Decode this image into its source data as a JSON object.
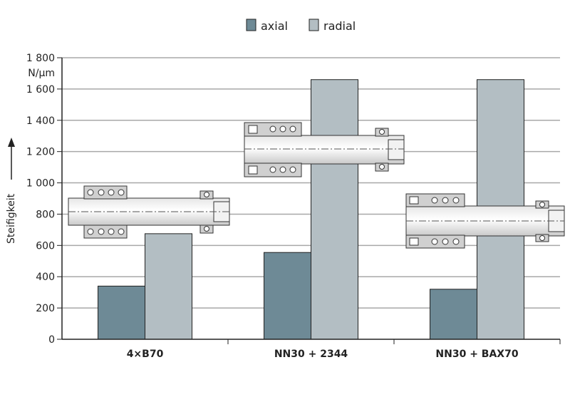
{
  "chart_data": {
    "type": "bar",
    "categories": [
      "4×B70",
      "NN30 + 2344",
      "NN30 + BAX70"
    ],
    "series": [
      {
        "name": "axial",
        "values": [
          340,
          555,
          320
        ],
        "color": "#6e8a96"
      },
      {
        "name": "radial",
        "values": [
          675,
          1660,
          1660
        ],
        "color": "#b3bec3"
      }
    ],
    "ylabel": "Steifigkeit",
    "yunit": "N/μm",
    "ylim": [
      0,
      1800
    ],
    "yticks": [
      0,
      200,
      400,
      600,
      800,
      1000,
      1200,
      1400,
      1600,
      1800
    ],
    "ytick_labels": [
      "0",
      "200",
      "400",
      "600",
      "800",
      "1 000",
      "1 200",
      "1 400",
      "1 600",
      "1 800"
    ],
    "grid": true,
    "legend_position": "top-center"
  }
}
